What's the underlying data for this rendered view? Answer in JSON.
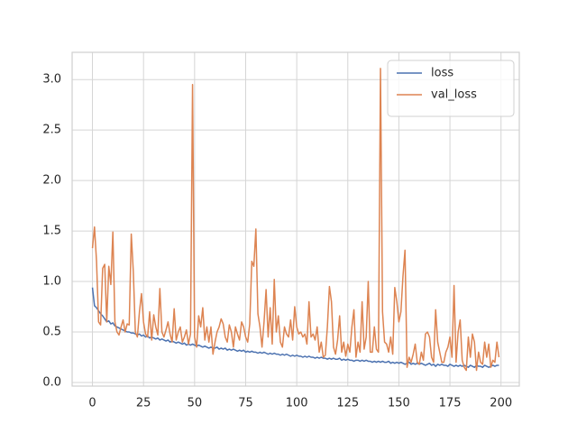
{
  "chart_data": {
    "type": "line",
    "x": [
      0,
      1,
      2,
      3,
      4,
      5,
      6,
      7,
      8,
      9,
      10,
      11,
      12,
      13,
      14,
      15,
      16,
      17,
      18,
      19,
      20,
      21,
      22,
      23,
      24,
      25,
      26,
      27,
      28,
      29,
      30,
      31,
      32,
      33,
      34,
      35,
      36,
      37,
      38,
      39,
      40,
      41,
      42,
      43,
      44,
      45,
      46,
      47,
      48,
      49,
      50,
      51,
      52,
      53,
      54,
      55,
      56,
      57,
      58,
      59,
      60,
      61,
      62,
      63,
      64,
      65,
      66,
      67,
      68,
      69,
      70,
      71,
      72,
      73,
      74,
      75,
      76,
      77,
      78,
      79,
      80,
      81,
      82,
      83,
      84,
      85,
      86,
      87,
      88,
      89,
      90,
      91,
      92,
      93,
      94,
      95,
      96,
      97,
      98,
      99,
      100,
      101,
      102,
      103,
      104,
      105,
      106,
      107,
      108,
      109,
      110,
      111,
      112,
      113,
      114,
      115,
      116,
      117,
      118,
      119,
      120,
      121,
      122,
      123,
      124,
      125,
      126,
      127,
      128,
      129,
      130,
      131,
      132,
      133,
      134,
      135,
      136,
      137,
      138,
      139,
      140,
      141,
      142,
      143,
      144,
      145,
      146,
      147,
      148,
      149,
      150,
      151,
      152,
      153,
      154,
      155,
      156,
      157,
      158,
      159,
      160,
      161,
      162,
      163,
      164,
      165,
      166,
      167,
      168,
      169,
      170,
      171,
      172,
      173,
      174,
      175,
      176,
      177,
      178,
      179,
      180,
      181,
      182,
      183,
      184,
      185,
      186,
      187,
      188,
      189,
      190,
      191,
      192,
      193,
      194,
      195,
      196,
      197,
      198,
      199
    ],
    "series": [
      {
        "name": "loss",
        "color": "#4c72b0",
        "values": [
          0.94,
          0.76,
          0.74,
          0.71,
          0.68,
          0.66,
          0.63,
          0.6,
          0.61,
          0.58,
          0.59,
          0.56,
          0.55,
          0.54,
          0.53,
          0.52,
          0.51,
          0.5,
          0.5,
          0.49,
          0.49,
          0.48,
          0.47,
          0.48,
          0.46,
          0.47,
          0.45,
          0.46,
          0.44,
          0.45,
          0.44,
          0.43,
          0.44,
          0.42,
          0.43,
          0.42,
          0.41,
          0.42,
          0.4,
          0.41,
          0.4,
          0.39,
          0.4,
          0.39,
          0.38,
          0.39,
          0.37,
          0.38,
          0.37,
          0.38,
          0.37,
          0.36,
          0.37,
          0.36,
          0.35,
          0.36,
          0.35,
          0.34,
          0.35,
          0.34,
          0.34,
          0.35,
          0.33,
          0.34,
          0.33,
          0.34,
          0.32,
          0.33,
          0.32,
          0.33,
          0.32,
          0.31,
          0.32,
          0.31,
          0.32,
          0.3,
          0.31,
          0.3,
          0.31,
          0.3,
          0.3,
          0.29,
          0.3,
          0.29,
          0.3,
          0.29,
          0.28,
          0.29,
          0.28,
          0.29,
          0.28,
          0.28,
          0.27,
          0.28,
          0.27,
          0.28,
          0.27,
          0.26,
          0.27,
          0.26,
          0.27,
          0.26,
          0.26,
          0.25,
          0.26,
          0.25,
          0.26,
          0.25,
          0.25,
          0.24,
          0.25,
          0.24,
          0.25,
          0.24,
          0.24,
          0.23,
          0.24,
          0.23,
          0.24,
          0.23,
          0.23,
          0.24,
          0.22,
          0.23,
          0.22,
          0.23,
          0.22,
          0.22,
          0.21,
          0.22,
          0.22,
          0.21,
          0.22,
          0.21,
          0.22,
          0.21,
          0.21,
          0.2,
          0.21,
          0.2,
          0.21,
          0.2,
          0.21,
          0.2,
          0.2,
          0.21,
          0.19,
          0.2,
          0.19,
          0.2,
          0.19,
          0.2,
          0.19,
          0.18,
          0.19,
          0.2,
          0.18,
          0.19,
          0.18,
          0.19,
          0.18,
          0.19,
          0.18,
          0.17,
          0.18,
          0.19,
          0.17,
          0.18,
          0.16,
          0.18,
          0.17,
          0.18,
          0.17,
          0.17,
          0.16,
          0.18,
          0.17,
          0.16,
          0.17,
          0.16,
          0.17,
          0.16,
          0.17,
          0.16,
          0.15,
          0.17,
          0.16,
          0.15,
          0.17,
          0.16,
          0.16,
          0.15,
          0.17,
          0.16,
          0.15,
          0.16,
          0.17,
          0.16,
          0.17,
          0.17
        ]
      },
      {
        "name": "val_loss",
        "color": "#dd8452",
        "values": [
          1.33,
          1.54,
          1.2,
          0.6,
          0.57,
          1.13,
          1.17,
          0.6,
          1.15,
          0.97,
          1.49,
          0.6,
          0.5,
          0.47,
          0.55,
          0.62,
          0.5,
          0.58,
          0.57,
          1.47,
          1.1,
          0.5,
          0.45,
          0.7,
          0.88,
          0.6,
          0.48,
          0.45,
          0.7,
          0.42,
          0.67,
          0.55,
          0.47,
          0.93,
          0.5,
          0.45,
          0.52,
          0.6,
          0.48,
          0.4,
          0.73,
          0.42,
          0.5,
          0.55,
          0.4,
          0.45,
          0.52,
          0.38,
          0.48,
          2.95,
          0.45,
          0.35,
          0.66,
          0.55,
          0.74,
          0.42,
          0.55,
          0.4,
          0.55,
          0.28,
          0.4,
          0.5,
          0.55,
          0.63,
          0.58,
          0.45,
          0.4,
          0.57,
          0.5,
          0.35,
          0.55,
          0.48,
          0.42,
          0.6,
          0.55,
          0.45,
          0.4,
          0.58,
          1.2,
          1.15,
          1.52,
          0.68,
          0.55,
          0.35,
          0.6,
          0.92,
          0.45,
          0.74,
          0.38,
          1.02,
          0.5,
          0.66,
          0.4,
          0.35,
          0.55,
          0.48,
          0.45,
          0.62,
          0.42,
          0.75,
          0.55,
          0.48,
          0.5,
          0.45,
          0.48,
          0.38,
          0.8,
          0.45,
          0.48,
          0.42,
          0.55,
          0.3,
          0.4,
          0.25,
          0.27,
          0.55,
          0.95,
          0.8,
          0.35,
          0.28,
          0.42,
          0.66,
          0.3,
          0.4,
          0.26,
          0.38,
          0.3,
          0.55,
          0.72,
          0.25,
          0.4,
          0.3,
          0.8,
          0.33,
          0.45,
          1.0,
          0.3,
          0.3,
          0.55,
          0.33,
          0.3,
          3.11,
          0.7,
          0.4,
          0.38,
          0.3,
          0.45,
          0.28,
          0.94,
          0.8,
          0.6,
          0.7,
          1.05,
          1.31,
          0.15,
          0.25,
          0.2,
          0.28,
          0.38,
          0.2,
          0.18,
          0.3,
          0.22,
          0.48,
          0.5,
          0.45,
          0.25,
          0.2,
          0.72,
          0.4,
          0.3,
          0.2,
          0.2,
          0.3,
          0.35,
          0.45,
          0.25,
          0.96,
          0.2,
          0.5,
          0.62,
          0.22,
          0.15,
          0.12,
          0.45,
          0.25,
          0.48,
          0.4,
          0.12,
          0.3,
          0.2,
          0.18,
          0.4,
          0.25,
          0.38,
          0.15,
          0.22,
          0.2,
          0.4,
          0.25
        ]
      }
    ],
    "xlim": [
      -9.95,
      208.95
    ],
    "xticks": [
      0,
      25,
      50,
      75,
      100,
      125,
      150,
      175,
      200
    ],
    "ylim": [
      -0.036,
      3.27
    ],
    "yticks": [
      {
        "value": 0,
        "label": "0.0"
      },
      0.5,
      {
        "value": 1,
        "label": "1.0"
      },
      1.5,
      {
        "value": 2,
        "label": "2.0"
      },
      2.5,
      {
        "value": 3,
        "label": "3.0"
      }
    ],
    "grid": true,
    "legend": "upper right"
  }
}
